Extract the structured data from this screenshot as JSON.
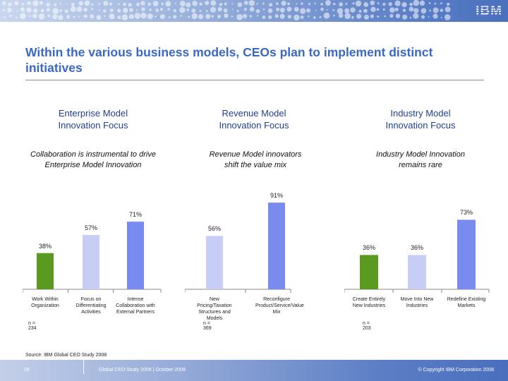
{
  "header": {
    "logo_text": "IBM"
  },
  "slide": {
    "title": "Within the various business models, CEOs plan to implement distinct initiatives"
  },
  "columns": [
    {
      "heading_line1": "Enterprise Model",
      "heading_line2": "Innovation Focus",
      "subtitle_line1": "Collaboration is instrumental to drive",
      "subtitle_line2": "Enterprise Model Innovation"
    },
    {
      "heading_line1": "Revenue Model",
      "heading_line2": "Innovation Focus",
      "subtitle_line1": "Revenue Model innovators",
      "subtitle_line2": "shift the value mix"
    },
    {
      "heading_line1": "Industry Model",
      "heading_line2": "Innovation Focus",
      "subtitle_line1": "Industry Model Innovation",
      "subtitle_line2": "remains rare"
    }
  ],
  "chart_data": [
    {
      "type": "bar",
      "categories": [
        "Work Within Organization",
        "Focus on Differentiating Activities",
        "Intense Collaboration with External Partners"
      ],
      "values": [
        38,
        57,
        71
      ],
      "value_labels": [
        "38%",
        "57%",
        "71%"
      ],
      "colors": [
        "#5a9a21",
        "#c8cdf5",
        "#7a8bf0"
      ],
      "n_label": "n = 234",
      "ylim": [
        0,
        100
      ]
    },
    {
      "type": "bar",
      "categories": [
        "New Pricing/Taxation Structures and Models",
        "Reconfigure Product/Service/Value Mix"
      ],
      "values": [
        56,
        91
      ],
      "value_labels": [
        "56%",
        "91%"
      ],
      "colors": [
        "#c8cdf5",
        "#7a8bf0"
      ],
      "n_label": "n = 369",
      "ylim": [
        0,
        100
      ]
    },
    {
      "type": "bar",
      "categories": [
        "Create Entirely New Industries",
        "Move Into New Industries",
        "Redefine Existing Markets"
      ],
      "values": [
        36,
        36,
        73
      ],
      "value_labels": [
        "36%",
        "36%",
        "73%"
      ],
      "colors": [
        "#5a9a21",
        "#c8cdf5",
        "#7a8bf0"
      ],
      "n_label": "n = 203",
      "ylim": [
        0,
        100
      ]
    }
  ],
  "source": "Source: IBM Global CEO Study 2008",
  "footer": {
    "page_number": "26",
    "study": "Global CEO Study 2008 | October 2008",
    "copyright": "© Copyright IBM Corporation 2008"
  }
}
